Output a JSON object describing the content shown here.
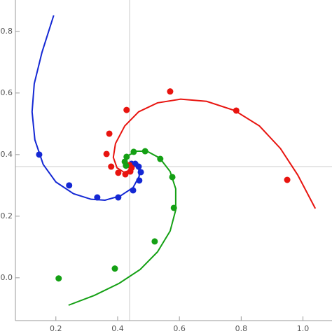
{
  "chart_data": {
    "type": "scatter",
    "xlim": [
      0.069,
      1.094
    ],
    "ylim": [
      -0.139,
      0.902
    ],
    "xticks": [
      0.2,
      0.4,
      0.6,
      0.8,
      {
        "value": 1,
        "label": "1.0"
      }
    ],
    "yticks": [
      {
        "value": 0,
        "label": "0.0"
      },
      0.2,
      0.4,
      0.6,
      0.8
    ],
    "axes_origin": [
      0.4386,
      0.361
    ],
    "series": [
      {
        "color": "#1428d4",
        "points": {
          "x": [
            0.146,
            0.243,
            0.334,
            0.402,
            0.45,
            0.47,
            0.475,
            0.468,
            0.457,
            0.445
          ],
          "y": [
            0.4,
            0.3,
            0.261,
            0.261,
            0.284,
            0.316,
            0.343,
            0.361,
            0.37,
            0.37
          ]
        },
        "curve": {
          "x": [
            0.193,
            0.155,
            0.13,
            0.123,
            0.132,
            0.159,
            0.2,
            0.257,
            0.314,
            0.359,
            0.409,
            0.45,
            0.47,
            0.468,
            0.454,
            0.438,
            0.432
          ],
          "y": [
            0.852,
            0.732,
            0.63,
            0.539,
            0.448,
            0.368,
            0.311,
            0.273,
            0.255,
            0.252,
            0.266,
            0.293,
            0.33,
            0.357,
            0.373,
            0.37,
            0.359
          ]
        }
      },
      {
        "color": "#e8140f",
        "points": {
          "x": [
            0.57,
            0.429,
            0.784,
            0.949,
            0.373,
            0.364,
            0.379,
            0.402,
            0.425,
            0.441,
            0.445,
            0.438
          ],
          "y": [
            0.605,
            0.545,
            0.543,
            0.318,
            0.468,
            0.402,
            0.361,
            0.341,
            0.336,
            0.345,
            0.357,
            0.366
          ]
        },
        "curve": {
          "x": [
            1.04,
            0.983,
            0.927,
            0.859,
            0.779,
            0.688,
            0.604,
            0.529,
            0.468,
            0.423,
            0.393,
            0.386,
            0.398,
            0.42,
            0.438,
            0.445
          ],
          "y": [
            0.225,
            0.334,
            0.42,
            0.493,
            0.543,
            0.573,
            0.58,
            0.568,
            0.539,
            0.493,
            0.436,
            0.391,
            0.357,
            0.343,
            0.348,
            0.361
          ]
        }
      },
      {
        "color": "#14a014",
        "points": {
          "x": [
            0.209,
            0.391,
            0.52,
            0.582,
            0.577,
            0.538,
            0.489,
            0.452,
            0.429,
            0.423,
            0.427
          ],
          "y": [
            -0.002,
            0.03,
            0.118,
            0.227,
            0.327,
            0.386,
            0.411,
            0.409,
            0.393,
            0.377,
            0.364
          ]
        },
        "curve": {
          "x": [
            0.241,
            0.325,
            0.405,
            0.473,
            0.529,
            0.57,
            0.588,
            0.588,
            0.57,
            0.536,
            0.495,
            0.461,
            0.436,
            0.427,
            0.432
          ],
          "y": [
            -0.089,
            -0.057,
            -0.018,
            0.027,
            0.084,
            0.152,
            0.22,
            0.289,
            0.345,
            0.389,
            0.411,
            0.411,
            0.398,
            0.38,
            0.364
          ]
        }
      }
    ]
  }
}
